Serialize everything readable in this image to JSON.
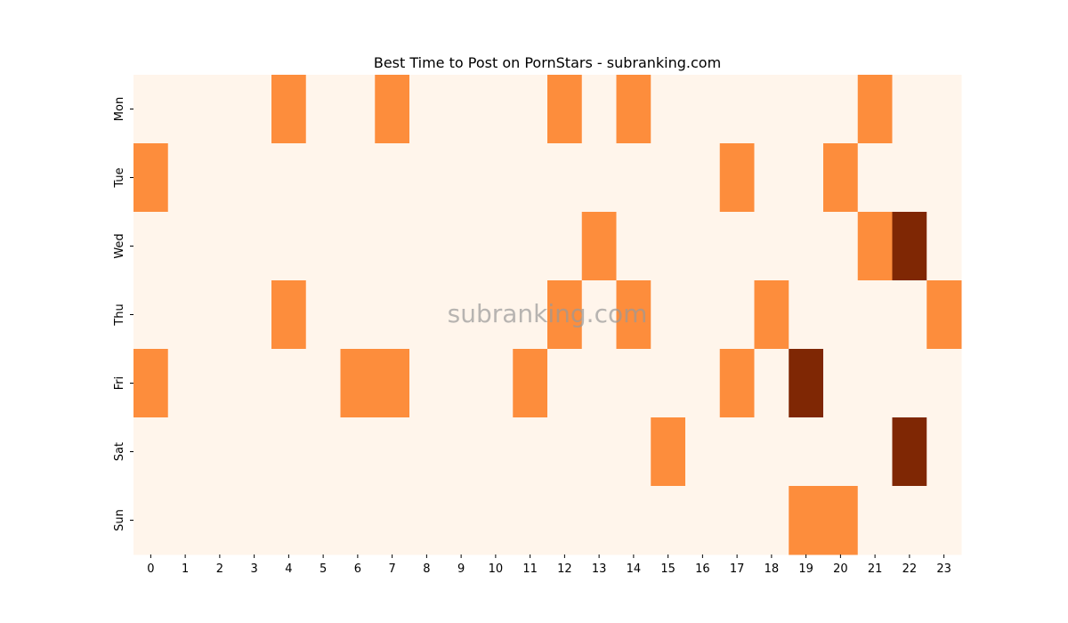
{
  "chart_data": {
    "type": "heatmap",
    "title": "Best Time to Post on PornStars - subranking.com",
    "watermark": "subranking.com",
    "x": [
      "0",
      "1",
      "2",
      "3",
      "4",
      "5",
      "6",
      "7",
      "8",
      "9",
      "10",
      "11",
      "12",
      "13",
      "14",
      "15",
      "16",
      "17",
      "18",
      "19",
      "20",
      "21",
      "22",
      "23"
    ],
    "y": [
      "Mon",
      "Tue",
      "Wed",
      "Thu",
      "Fri",
      "Sat",
      "Sun"
    ],
    "xlabel": "",
    "ylabel": "",
    "colormap": [
      "#fff5eb",
      "#fd8d3c",
      "#7f2704"
    ],
    "values": [
      [
        0,
        0,
        0,
        0,
        1,
        0,
        0,
        1,
        0,
        0,
        0,
        0,
        1,
        0,
        1,
        0,
        0,
        0,
        0,
        0,
        0,
        1,
        0,
        0
      ],
      [
        1,
        0,
        0,
        0,
        0,
        0,
        0,
        0,
        0,
        0,
        0,
        0,
        0,
        0,
        0,
        0,
        0,
        1,
        0,
        0,
        1,
        0,
        0,
        0
      ],
      [
        0,
        0,
        0,
        0,
        0,
        0,
        0,
        0,
        0,
        0,
        0,
        0,
        0,
        1,
        0,
        0,
        0,
        0,
        0,
        0,
        0,
        1,
        2,
        0
      ],
      [
        0,
        0,
        0,
        0,
        1,
        0,
        0,
        0,
        0,
        0,
        0,
        0,
        1,
        0,
        1,
        0,
        0,
        0,
        1,
        0,
        0,
        0,
        0,
        1
      ],
      [
        1,
        0,
        0,
        0,
        0,
        0,
        1,
        1,
        0,
        0,
        0,
        1,
        0,
        0,
        0,
        0,
        0,
        1,
        0,
        2,
        0,
        0,
        0,
        0
      ],
      [
        0,
        0,
        0,
        0,
        0,
        0,
        0,
        0,
        0,
        0,
        0,
        0,
        0,
        0,
        0,
        1,
        0,
        0,
        0,
        0,
        0,
        0,
        2,
        0
      ],
      [
        0,
        0,
        0,
        0,
        0,
        0,
        0,
        0,
        0,
        0,
        0,
        0,
        0,
        0,
        0,
        0,
        0,
        0,
        0,
        1,
        1,
        0,
        0,
        0
      ]
    ]
  }
}
